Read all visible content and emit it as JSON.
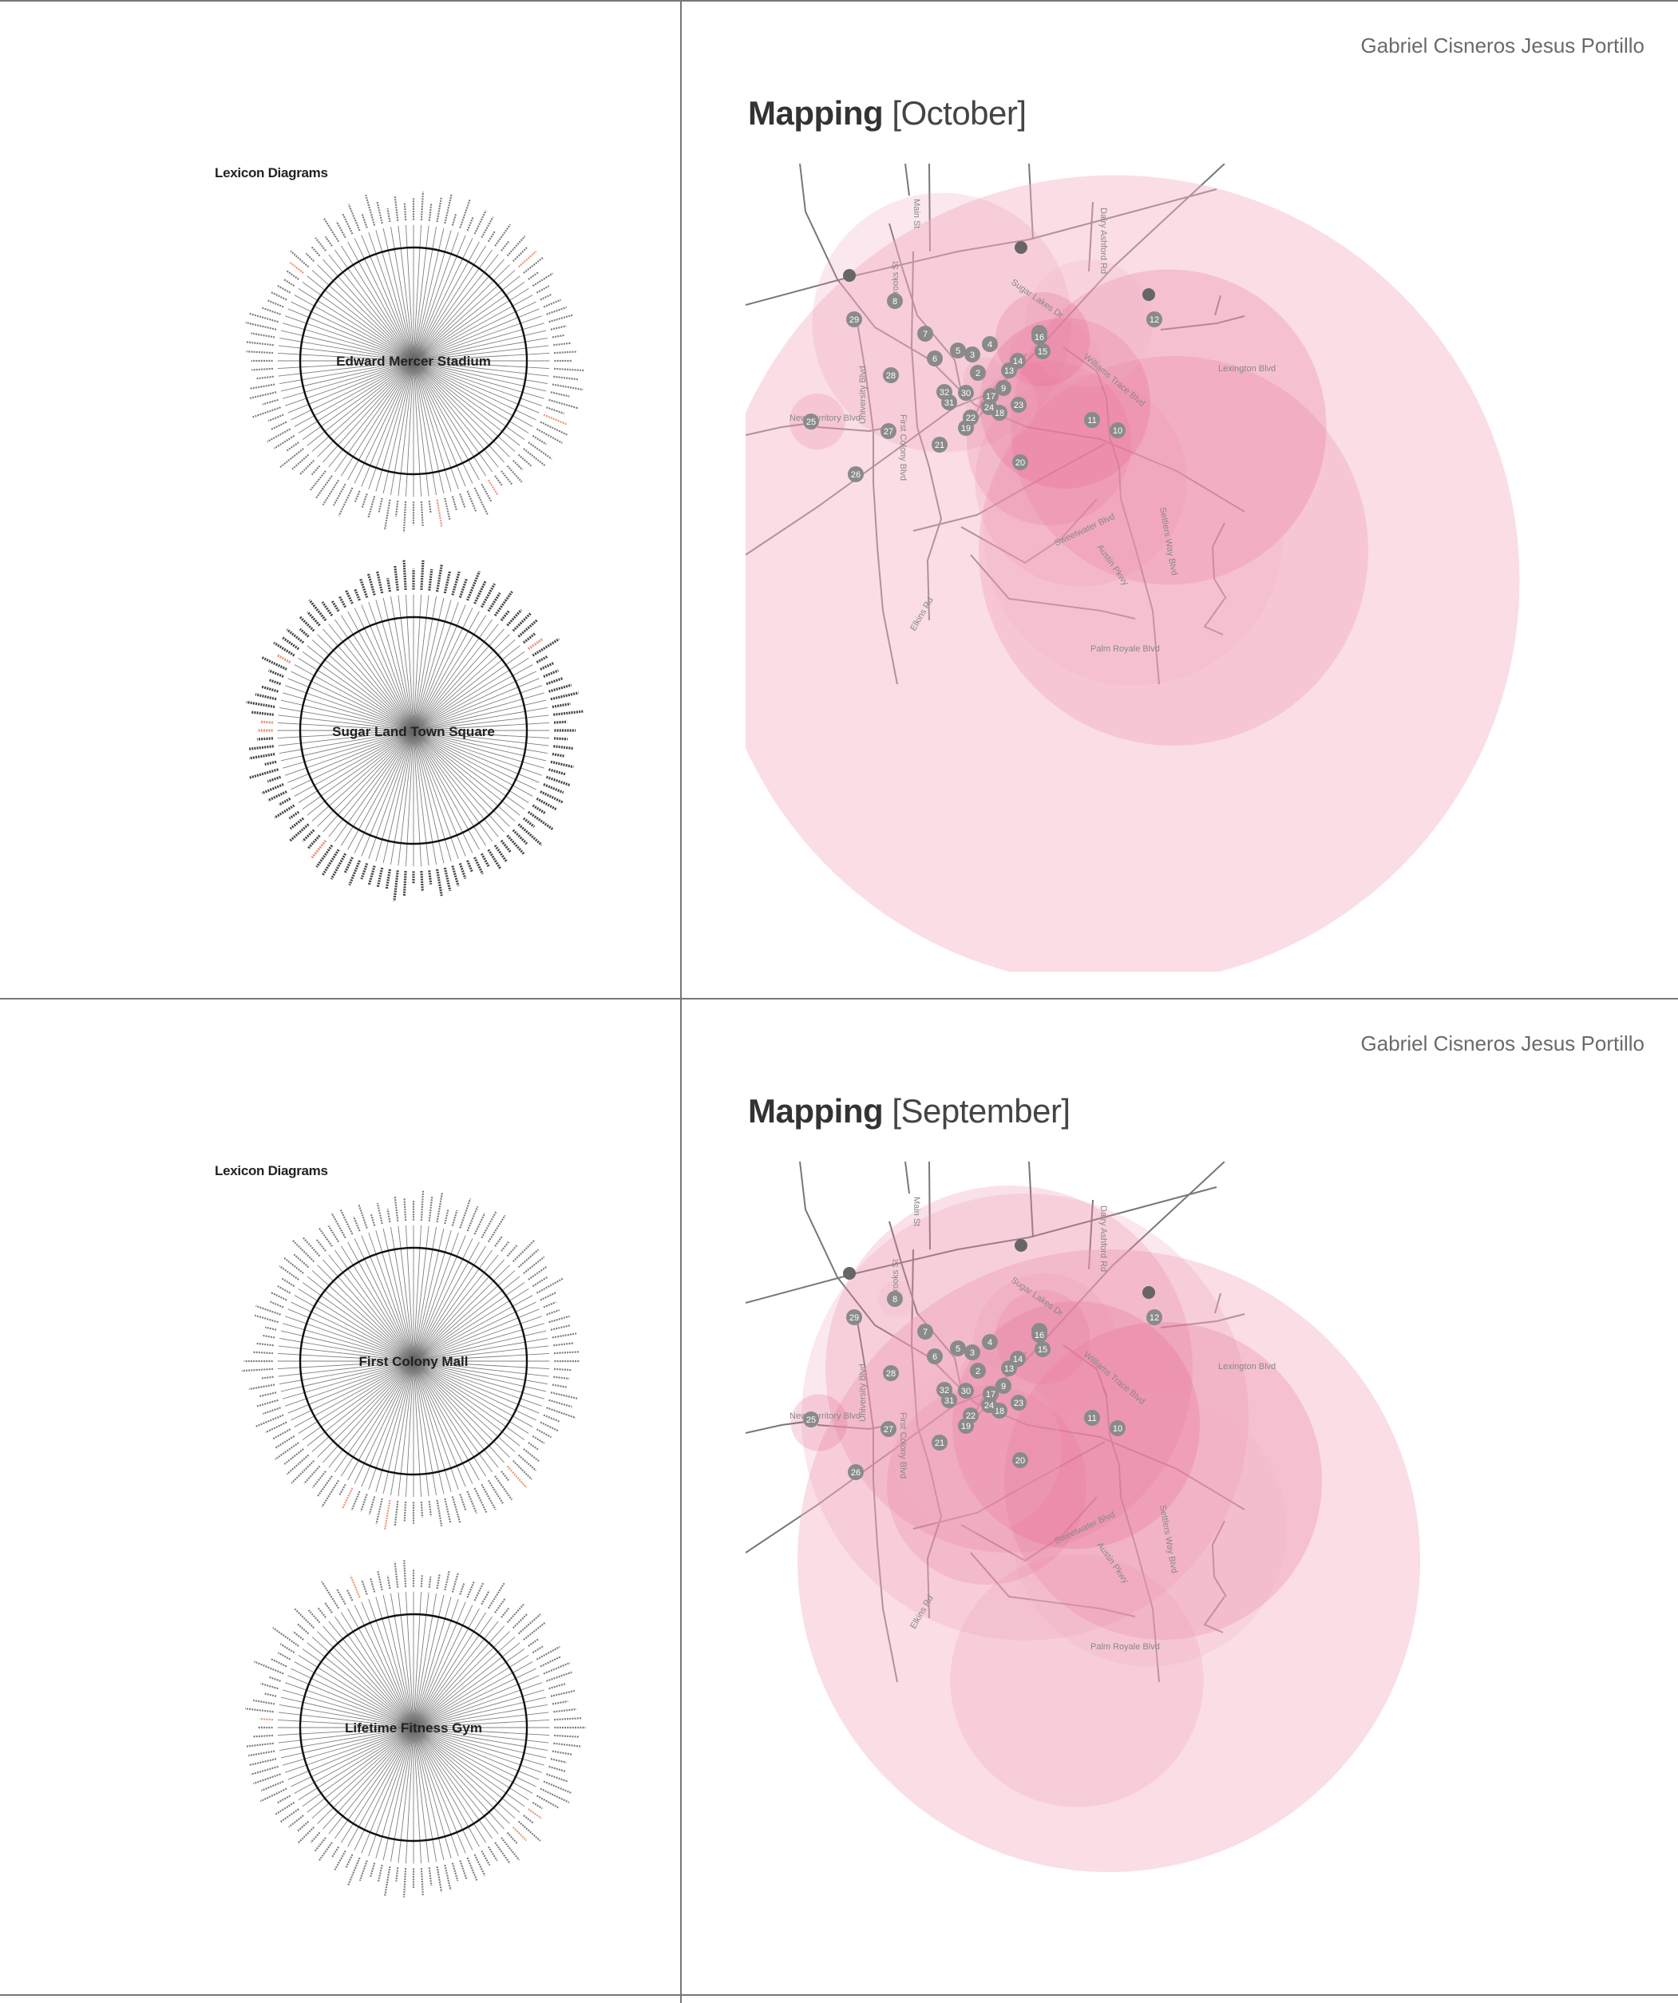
{
  "pages": [
    {
      "author": "Gabriel Cisneros Jesus Portillo",
      "title_bold": "Mapping",
      "title_light": "[October]",
      "lexicon_heading": "Lexicon Diagrams",
      "venues": [
        "Edward Mercer Stadium",
        "Sugar Land Town Square"
      ]
    },
    {
      "author": "Gabriel Cisneros Jesus Portillo",
      "title_bold": "Mapping",
      "title_light": "[September]",
      "lexicon_heading": "Lexicon Diagrams",
      "venues": [
        "First Colony Mall",
        "Lifetime Fitness Gym"
      ]
    }
  ],
  "streets": [
    "Main St",
    "Dairy Ashford Rd",
    "Sugar Lakes Dr",
    "Brooks St",
    "Williams Trace Blvd",
    "Lexington Blvd",
    "University Blvd",
    "First Colony Blvd",
    "New Territory Blvd",
    "Settlers Way Blvd",
    "Sweetwater Blvd",
    "Austin Pkwy",
    "Elkins Rd",
    "Palm Royale Blvd"
  ],
  "markers": [
    "1",
    "2",
    "3",
    "4",
    "5",
    "6",
    "7",
    "8",
    "9",
    "10",
    "11",
    "12",
    "13",
    "14",
    "15",
    "16",
    "17",
    "18",
    "19",
    "20",
    "21",
    "22",
    "23",
    "24",
    "25",
    "26",
    "27",
    "28",
    "29",
    "30",
    "31",
    "32"
  ],
  "colors": {
    "accent": "#e8577e",
    "marker": "#8a8a8a",
    "street": "#777777",
    "border": "#777777"
  }
}
